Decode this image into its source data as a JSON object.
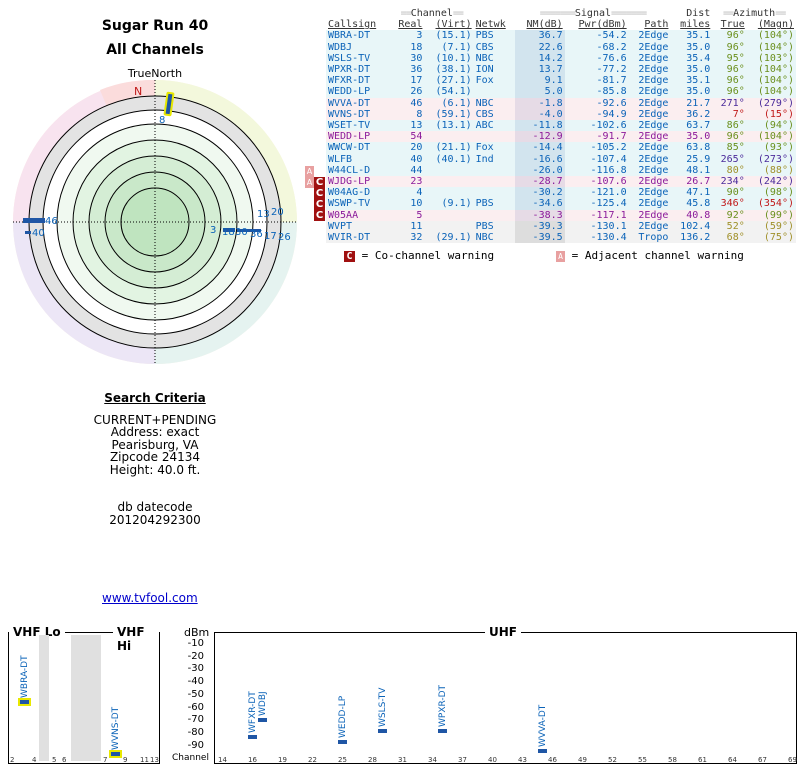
{
  "title": "Sugar Run 40",
  "subtitle": "All Channels",
  "true_north_label": "TrueNorth",
  "compass_n": "N",
  "radar_labels": {
    "a": "8",
    "b": "46",
    "c": "40",
    "d": "13",
    "e": "20",
    "f": "3",
    "g": "18",
    "h": "30",
    "i": "36",
    "j": "17",
    "k": "26"
  },
  "search": {
    "header": "Search Criteria",
    "lines": [
      "CURRENT+PENDING",
      "Address: exact",
      "Pearisburg, VA",
      "Zipcode 24134",
      "Height: 40.0 ft."
    ],
    "db_label": "db datecode",
    "db_value": "201204292300"
  },
  "footer_link": "www.tvfool.com",
  "table": {
    "group_channel": "Channel",
    "group_signal": "Signal",
    "group_dist": "Dist",
    "group_azimuth": "Azimuth",
    "headers": [
      "Callsign",
      "Real",
      "(Virt)",
      "Netwk",
      "NM(dB)",
      "Pwr(dBm)",
      "Path",
      "miles",
      "True",
      "(Magn)"
    ],
    "rows": [
      {
        "call": "WBRA-DT",
        "real": "3",
        "virt": "(15.1)",
        "net": "PBS",
        "nm": "36.7",
        "pwr": "-54.2",
        "path": "2Edge",
        "dist": "35.1",
        "true": "96°",
        "magn": "(104°)",
        "style": "rowbg1",
        "color": "c-blue",
        "az": "az-green"
      },
      {
        "call": "WDBJ",
        "real": "18",
        "virt": "(7.1)",
        "net": "CBS",
        "nm": "22.6",
        "pwr": "-68.2",
        "path": "2Edge",
        "dist": "35.0",
        "true": "96°",
        "magn": "(104°)",
        "style": "rowbg1",
        "color": "c-blue",
        "az": "az-green"
      },
      {
        "call": "WSLS-TV",
        "real": "30",
        "virt": "(10.1)",
        "net": "NBC",
        "nm": "14.2",
        "pwr": "-76.6",
        "path": "2Edge",
        "dist": "35.4",
        "true": "95°",
        "magn": "(103°)",
        "style": "rowbg1",
        "color": "c-blue",
        "az": "az-green"
      },
      {
        "call": "WPXR-DT",
        "real": "36",
        "virt": "(38.1)",
        "net": "ION",
        "nm": "13.7",
        "pwr": "-77.2",
        "path": "2Edge",
        "dist": "35.0",
        "true": "96°",
        "magn": "(104°)",
        "style": "rowbg1",
        "color": "c-blue",
        "az": "az-green"
      },
      {
        "call": "WFXR-DT",
        "real": "17",
        "virt": "(27.1)",
        "net": "Fox",
        "nm": "9.1",
        "pwr": "-81.7",
        "path": "2Edge",
        "dist": "35.1",
        "true": "96°",
        "magn": "(104°)",
        "style": "rowbg1",
        "color": "c-blue",
        "az": "az-green"
      },
      {
        "call": "WEDD-LP",
        "real": "26",
        "virt": "(54.1)",
        "net": "",
        "nm": "5.0",
        "pwr": "-85.8",
        "path": "2Edge",
        "dist": "35.0",
        "true": "96°",
        "magn": "(104°)",
        "style": "rowbg1",
        "color": "c-blue",
        "az": "az-green"
      },
      {
        "call": "WVVA-DT",
        "real": "46",
        "virt": "(6.1)",
        "net": "NBC",
        "nm": "-1.8",
        "pwr": "-92.6",
        "path": "2Edge",
        "dist": "21.7",
        "true": "271°",
        "magn": "(279°)",
        "style": "rowbg2",
        "color": "c-blue",
        "az": "az-purple"
      },
      {
        "call": "WVNS-DT",
        "real": "8",
        "virt": "(59.1)",
        "net": "CBS",
        "nm": "-4.0",
        "pwr": "-94.9",
        "path": "2Edge",
        "dist": "36.2",
        "true": "7°",
        "magn": "(15°)",
        "style": "rowbg2",
        "color": "c-blue",
        "az": "az-red"
      },
      {
        "call": "WSET-TV",
        "real": "13",
        "virt": "(13.1)",
        "net": "ABC",
        "nm": "-11.8",
        "pwr": "-102.6",
        "path": "2Edge",
        "dist": "63.7",
        "true": "86°",
        "magn": "(94°)",
        "style": "rowbg1",
        "color": "c-blue",
        "az": "az-green"
      },
      {
        "call": "WEDD-LP",
        "real": "54",
        "virt": "",
        "net": "",
        "nm": "-12.9",
        "pwr": "-91.7",
        "path": "2Edge",
        "dist": "35.0",
        "true": "96°",
        "magn": "(104°)",
        "style": "rowbg2",
        "color": "c-purple",
        "az": "az-green"
      },
      {
        "call": "WWCW-DT",
        "real": "20",
        "virt": "(21.1)",
        "net": "Fox",
        "nm": "-14.4",
        "pwr": "-105.2",
        "path": "2Edge",
        "dist": "63.8",
        "true": "85°",
        "magn": "(93°)",
        "style": "rowbg1",
        "color": "c-blue",
        "az": "az-green"
      },
      {
        "call": "WLFB",
        "real": "40",
        "virt": "(40.1)",
        "net": "Ind",
        "nm": "-16.6",
        "pwr": "-107.4",
        "path": "2Edge",
        "dist": "25.9",
        "true": "265°",
        "magn": "(273°)",
        "style": "rowbg1",
        "color": "c-blue",
        "az": "az-purple"
      },
      {
        "call": "W44CL-D",
        "real": "44",
        "virt": "",
        "net": "",
        "nm": "-26.0",
        "pwr": "-116.8",
        "path": "2Edge",
        "dist": "48.1",
        "true": "80°",
        "magn": "(88°)",
        "style": "rowbg1",
        "color": "c-blue",
        "az": "az-olive"
      },
      {
        "call": "WJDG-LP",
        "real": "23",
        "virt": "",
        "net": "",
        "nm": "-28.7",
        "pwr": "-107.6",
        "path": "2Edge",
        "dist": "26.7",
        "true": "234°",
        "magn": "(242°)",
        "style": "rowbg2",
        "color": "c-purple",
        "az": "az-purple"
      },
      {
        "call": "W04AG-D",
        "real": "4",
        "virt": "",
        "net": "",
        "nm": "-30.2",
        "pwr": "-121.0",
        "path": "2Edge",
        "dist": "47.1",
        "true": "90°",
        "magn": "(98°)",
        "style": "rowbg1",
        "color": "c-blue",
        "az": "az-green"
      },
      {
        "call": "WSWP-TV",
        "real": "10",
        "virt": "(9.1)",
        "net": "PBS",
        "nm": "-34.6",
        "pwr": "-125.4",
        "path": "2Edge",
        "dist": "45.8",
        "true": "346°",
        "magn": "(354°)",
        "style": "rowbg1",
        "color": "c-blue",
        "az": "az-red"
      },
      {
        "call": "W05AA",
        "real": "5",
        "virt": "",
        "net": "",
        "nm": "-38.3",
        "pwr": "-117.1",
        "path": "2Edge",
        "dist": "40.8",
        "true": "92°",
        "magn": "(99°)",
        "style": "rowbg2",
        "color": "c-purple",
        "az": "az-green"
      },
      {
        "call": "WVPT",
        "real": "11",
        "virt": "",
        "net": "PBS",
        "nm": "-39.3",
        "pwr": "-130.1",
        "path": "2Edge",
        "dist": "102.4",
        "true": "52°",
        "magn": "(59°)",
        "style": "rowbg3",
        "color": "c-blue",
        "az": "az-olive"
      },
      {
        "call": "WVIR-DT",
        "real": "32",
        "virt": "(29.1)",
        "net": "NBC",
        "nm": "-39.5",
        "pwr": "-130.4",
        "path": "Tropo",
        "dist": "136.2",
        "true": "68°",
        "magn": "(75°)",
        "style": "rowbg3",
        "color": "c-blue",
        "az": "az-olive"
      }
    ]
  },
  "legend": {
    "co": "= Co-channel warning",
    "adj": "= Adjacent channel warning",
    "co_badge": "C",
    "adj_badge": "A"
  },
  "spectrum": {
    "vhf_lo": "VHF Lo",
    "vhf_hi": "VHF Hi",
    "uhf": "UHF",
    "dbm": "dBm",
    "channel_label": "Channel",
    "ylabels": [
      "-10",
      "-20",
      "-30",
      "-40",
      "-50",
      "-60",
      "-70",
      "-80",
      "-90"
    ],
    "vhf_ticks": [
      "2",
      "4",
      "5",
      "6",
      "7",
      "9",
      "11",
      "13"
    ],
    "uhf_ticks": [
      "14",
      "16",
      "19",
      "22",
      "25",
      "28",
      "31",
      "34",
      "37",
      "40",
      "43",
      "46",
      "49",
      "52",
      "55",
      "58",
      "61",
      "64",
      "67",
      "69"
    ],
    "stations": [
      {
        "name": "WBRA-DT",
        "ch": "3",
        "dbm": -54.2
      },
      {
        "name": "WVNS-DT",
        "ch": "8",
        "dbm": -94.9
      },
      {
        "name": "WFXR-DT",
        "ch": "17",
        "dbm": -81.7
      },
      {
        "name": "WDBJ",
        "ch": "18",
        "dbm": -68.2
      },
      {
        "name": "WEDD-LP",
        "ch": "26",
        "dbm": -85.8
      },
      {
        "name": "WSLS-TV",
        "ch": "30",
        "dbm": -76.6
      },
      {
        "name": "WPXR-DT",
        "ch": "36",
        "dbm": -77.2
      },
      {
        "name": "WVVA-DT",
        "ch": "46",
        "dbm": -92.6
      }
    ]
  }
}
